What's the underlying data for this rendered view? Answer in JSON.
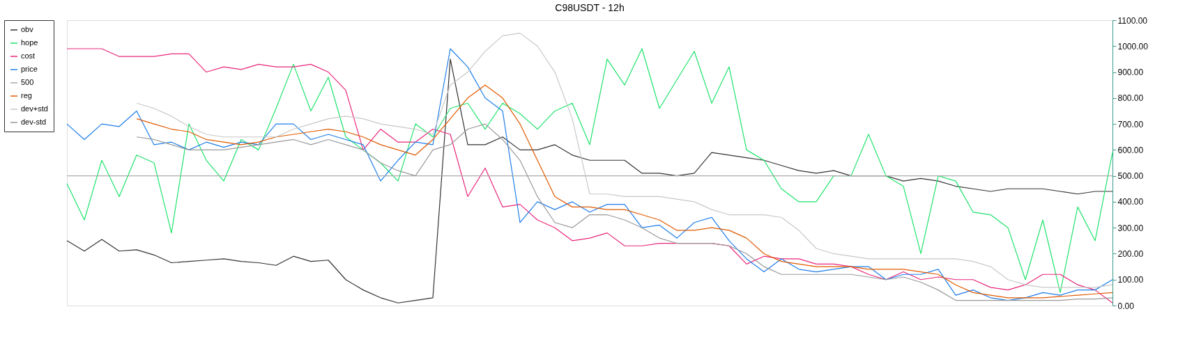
{
  "chart_data": {
    "type": "line",
    "title": "C98USDT - 12h",
    "categories": [
      null,
      null,
      null,
      null,
      null,
      null,
      null,
      null,
      null,
      null,
      null,
      null,
      null,
      null,
      null,
      null,
      null,
      null,
      null,
      null,
      null,
      null,
      null,
      null,
      null,
      null,
      null,
      null,
      null,
      null,
      null,
      null,
      null,
      null,
      null,
      null,
      null,
      null,
      null,
      null,
      null,
      null,
      null,
      null,
      null,
      null,
      null,
      null,
      null,
      null,
      null,
      null,
      null,
      null,
      null,
      null,
      null,
      null,
      null,
      null,
      null
    ],
    "series": [
      {
        "name": "obv",
        "color": "#333333",
        "values": [
          250,
          210,
          255,
          210,
          215,
          195,
          165,
          170,
          175,
          180,
          170,
          165,
          155,
          190,
          170,
          175,
          100,
          60,
          30,
          10,
          20,
          30,
          950,
          620,
          620,
          650,
          600,
          600,
          620,
          580,
          560,
          560,
          560,
          510,
          510,
          500,
          510,
          590,
          580,
          570,
          560,
          540,
          520,
          510,
          520,
          500,
          500,
          500,
          480,
          490,
          480,
          460,
          450,
          440,
          450,
          450,
          450,
          440,
          430,
          440,
          440
        ]
      },
      {
        "name": "hope",
        "color": "#1ee36b",
        "values": [
          470,
          330,
          560,
          420,
          580,
          550,
          280,
          700,
          560,
          480,
          640,
          600,
          760,
          930,
          750,
          880,
          650,
          600,
          550,
          480,
          700,
          650,
          760,
          780,
          680,
          780,
          740,
          680,
          750,
          780,
          620,
          950,
          850,
          990,
          760,
          870,
          980,
          780,
          920,
          600,
          560,
          450,
          400,
          400,
          500,
          500,
          660,
          500,
          460,
          200,
          500,
          480,
          360,
          350,
          300,
          100,
          330,
          50,
          380,
          250,
          590
        ]
      },
      {
        "name": "cost",
        "color": "#e8267a",
        "values": [
          990,
          990,
          990,
          960,
          960,
          960,
          970,
          970,
          900,
          920,
          910,
          930,
          920,
          920,
          930,
          900,
          830,
          600,
          680,
          630,
          630,
          680,
          660,
          420,
          530,
          380,
          390,
          330,
          300,
          250,
          260,
          280,
          230,
          230,
          240,
          240,
          240,
          240,
          230,
          160,
          190,
          180,
          180,
          160,
          160,
          150,
          120,
          100,
          130,
          100,
          110,
          100,
          100,
          70,
          60,
          80,
          120,
          120,
          80,
          60,
          10
        ]
      },
      {
        "name": "price",
        "color": "#1f7ee8",
        "values": [
          700,
          640,
          700,
          690,
          750,
          620,
          630,
          600,
          630,
          610,
          630,
          620,
          700,
          700,
          640,
          660,
          640,
          620,
          480,
          560,
          630,
          620,
          990,
          920,
          800,
          750,
          320,
          400,
          370,
          400,
          360,
          390,
          390,
          300,
          310,
          260,
          320,
          340,
          250,
          180,
          130,
          180,
          140,
          130,
          140,
          150,
          150,
          100,
          120,
          120,
          140,
          40,
          60,
          30,
          20,
          30,
          50,
          40,
          60,
          60,
          100
        ]
      },
      {
        "name": "500",
        "color": "#aaaaaa",
        "values": [
          500,
          500,
          500,
          500,
          500,
          500,
          500,
          500,
          500,
          500,
          500,
          500,
          500,
          500,
          500,
          500,
          500,
          500,
          500,
          500,
          500,
          500,
          500,
          500,
          500,
          500,
          500,
          500,
          500,
          500,
          500,
          500,
          500,
          500,
          500,
          500,
          500,
          500,
          500,
          500,
          500,
          500,
          500,
          500,
          500,
          500,
          500,
          500,
          500,
          500,
          500,
          500,
          500,
          500,
          500,
          500,
          500,
          500,
          500,
          500,
          500
        ]
      },
      {
        "name": "reg",
        "color": "#e05a00",
        "values": [
          null,
          null,
          null,
          null,
          720,
          700,
          680,
          670,
          640,
          630,
          620,
          630,
          650,
          660,
          670,
          680,
          670,
          650,
          620,
          600,
          580,
          640,
          720,
          800,
          850,
          800,
          700,
          560,
          420,
          380,
          380,
          370,
          370,
          350,
          330,
          290,
          290,
          300,
          290,
          260,
          200,
          170,
          160,
          150,
          150,
          150,
          140,
          140,
          140,
          130,
          120,
          80,
          50,
          40,
          30,
          30,
          30,
          35,
          40,
          45,
          50
        ]
      },
      {
        "name": "dev+std",
        "color": "#c8c8c8",
        "values": [
          null,
          null,
          null,
          null,
          780,
          760,
          730,
          690,
          660,
          650,
          650,
          650,
          650,
          680,
          700,
          720,
          730,
          720,
          700,
          690,
          680,
          660,
          850,
          900,
          980,
          1040,
          1050,
          1000,
          900,
          720,
          430,
          430,
          420,
          420,
          420,
          410,
          400,
          370,
          350,
          350,
          350,
          340,
          290,
          220,
          200,
          190,
          180,
          180,
          180,
          180,
          180,
          180,
          170,
          150,
          100,
          80,
          70,
          70,
          70,
          70,
          80
        ]
      },
      {
        "name": "dev-std",
        "color": "#999999",
        "values": [
          null,
          null,
          null,
          null,
          650,
          640,
          620,
          600,
          600,
          600,
          610,
          620,
          630,
          640,
          620,
          640,
          620,
          600,
          550,
          520,
          500,
          600,
          620,
          680,
          700,
          640,
          560,
          420,
          320,
          300,
          350,
          350,
          330,
          300,
          260,
          240,
          240,
          240,
          230,
          200,
          150,
          120,
          120,
          120,
          120,
          120,
          110,
          100,
          110,
          90,
          60,
          20,
          20,
          20,
          20,
          20,
          20,
          20,
          25,
          25,
          30
        ]
      }
    ],
    "ylim": [
      0,
      1100
    ],
    "yticks": [
      {
        "value": 0,
        "label": "0.00"
      },
      {
        "value": 100,
        "label": "100.00"
      },
      {
        "value": 200,
        "label": "200.00"
      },
      {
        "value": 300,
        "label": "300.00"
      },
      {
        "value": 400,
        "label": "400.00"
      },
      {
        "value": 500,
        "label": "500.00"
      },
      {
        "value": 600,
        "label": "600.00"
      },
      {
        "value": 700,
        "label": "700.00"
      },
      {
        "value": 800,
        "label": "800.00"
      },
      {
        "value": 900,
        "label": "900.00"
      },
      {
        "value": 1000,
        "label": "1000.00"
      },
      {
        "value": 1100,
        "label": "1100.00"
      }
    ],
    "tick_labels": "y",
    "grid": false,
    "legend": "left",
    "marker": "none",
    "line_style": "solid"
  }
}
